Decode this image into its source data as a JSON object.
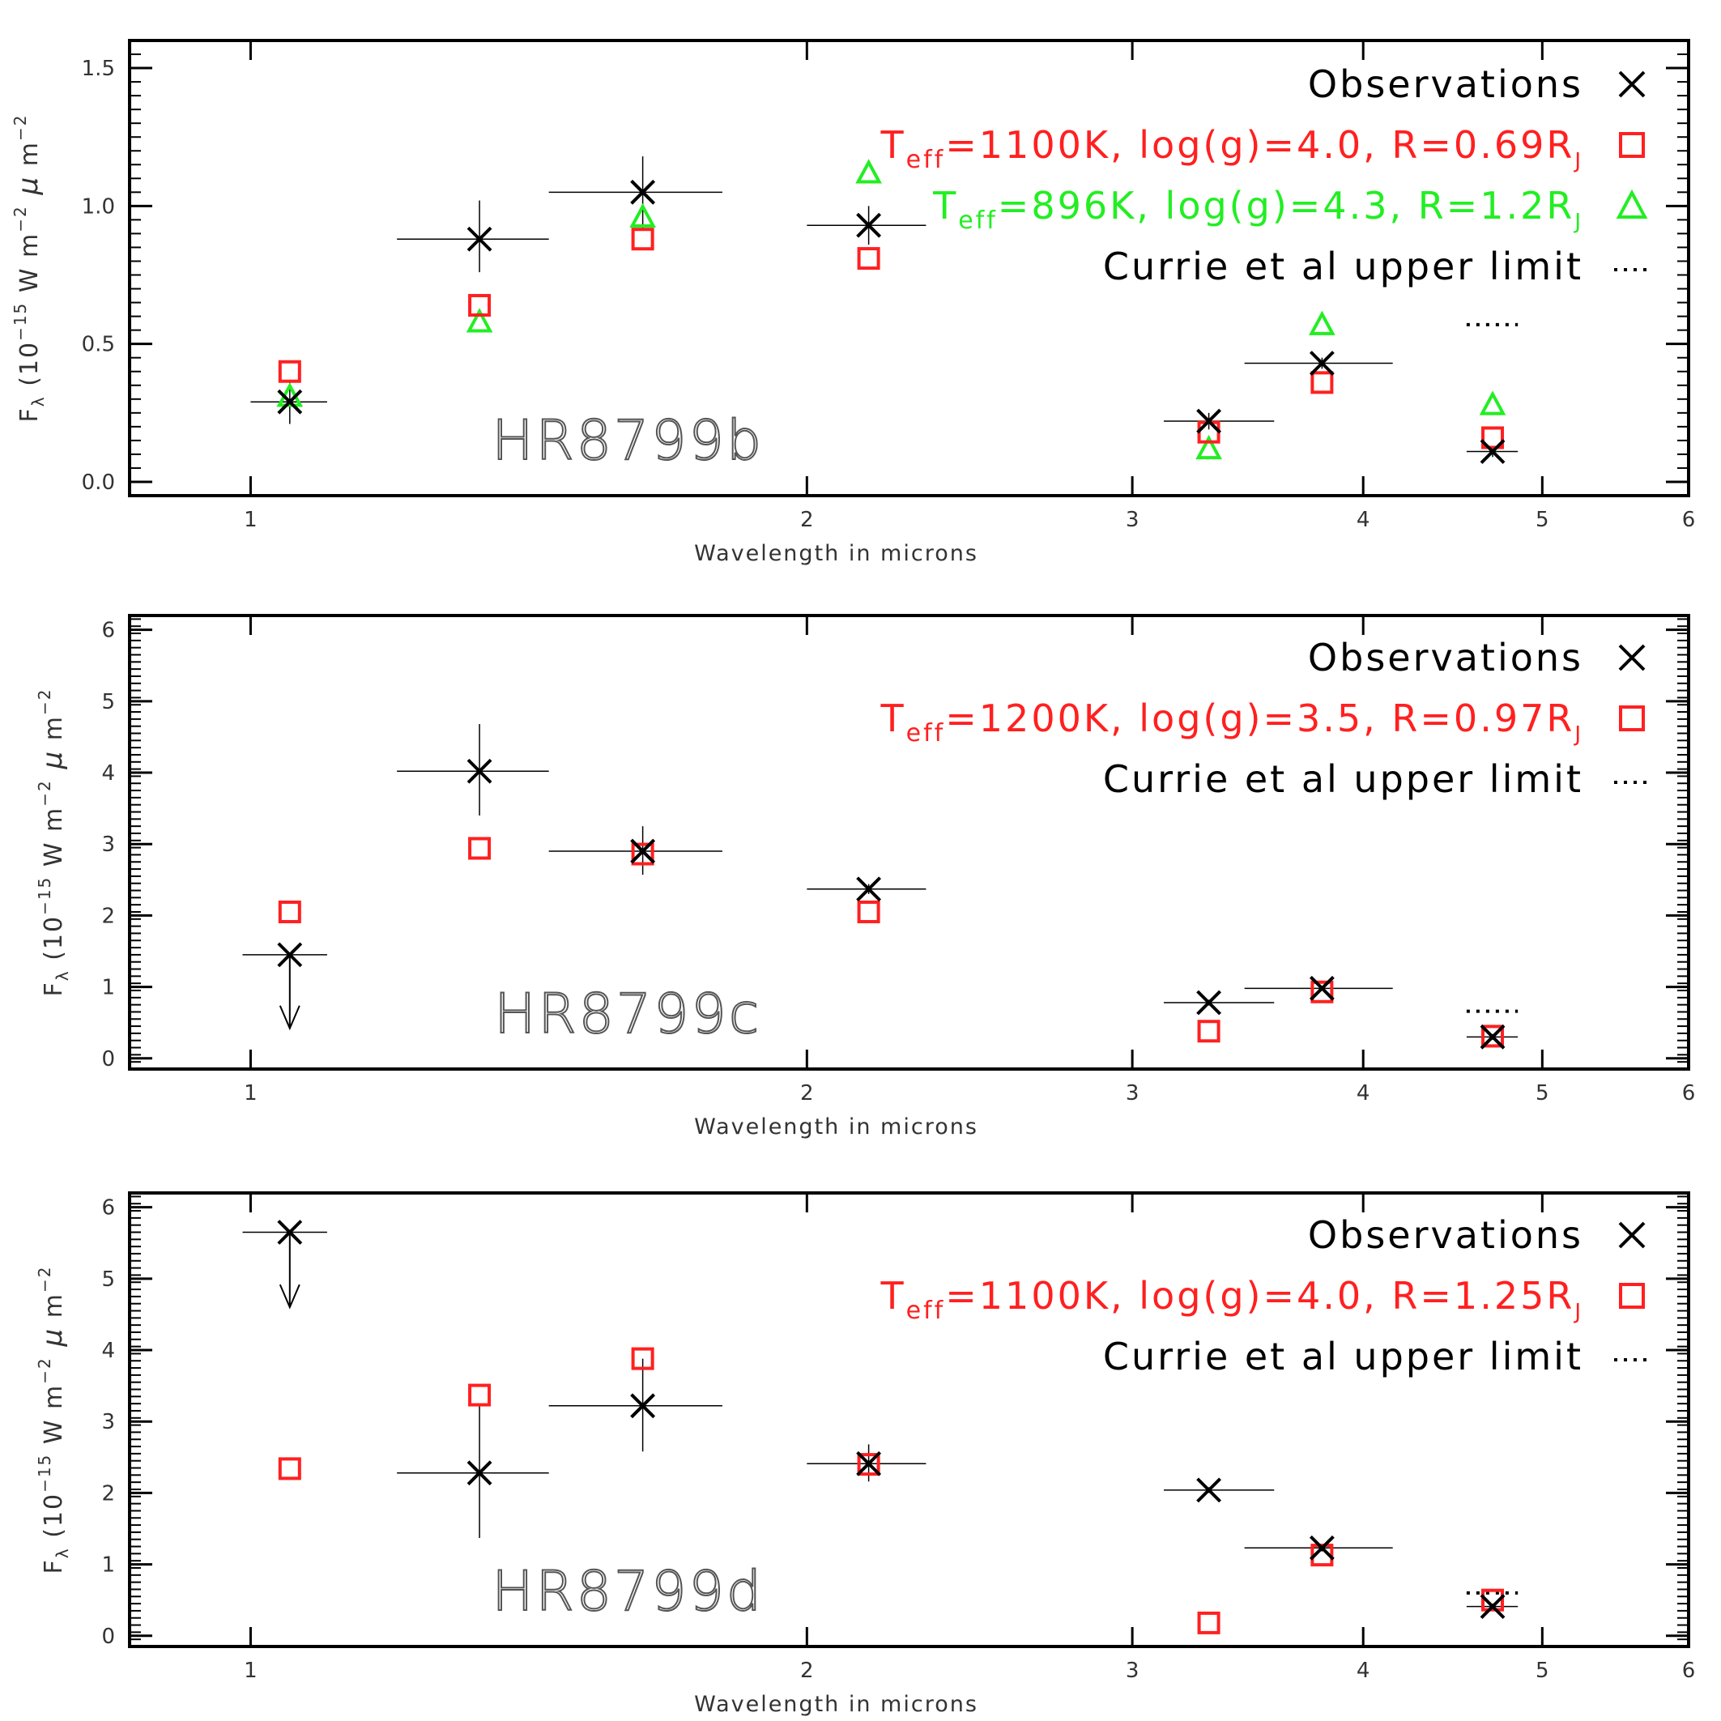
{
  "chart_data": [
    {
      "type": "scatter",
      "title": "HR8799b",
      "xlabel": "Wavelength in microns",
      "ylabel": "F_λ (10^-15 W m^-2 μ m^-2)",
      "ylabel_parts": {
        "prefix": "F",
        "sub": "λ",
        "main": "(10",
        "exp1": "−15",
        "w": "W m",
        "exp2": "−2",
        "mu": "μ",
        "m": "m",
        "exp3": "−2"
      },
      "xscale": "log",
      "xlim": [
        0.86,
        6.0
      ],
      "ylim": [
        -0.05,
        1.6
      ],
      "xticks": [
        1,
        2,
        3,
        4,
        5,
        6
      ],
      "yticks": [
        0.0,
        0.5,
        1.0,
        1.5
      ],
      "ytick_labels": [
        "0.0",
        "0.5",
        "1.0",
        "1.5"
      ],
      "legend": [
        {
          "type": "obs",
          "text": "Observations",
          "color": "#000000"
        },
        {
          "type": "model",
          "parts": [
            "T",
            "eff",
            "=1100K, log(g)=4.0, R=0.69R",
            "J"
          ],
          "color": "#ff2020"
        },
        {
          "type": "model2",
          "parts": [
            "T",
            "eff",
            "=896K, log(g)=4.3, R=1.2R",
            "J"
          ],
          "color": "#22ee22"
        },
        {
          "type": "limit",
          "text": "Currie et al upper limit",
          "color": "#000000"
        }
      ],
      "observations": [
        {
          "x": 1.05,
          "y": 0.29,
          "xerr": [
            1.0,
            1.1
          ],
          "yerr": [
            0.21,
            0.36
          ],
          "upper": false
        },
        {
          "x": 1.33,
          "y": 0.88,
          "xerr": [
            1.2,
            1.45
          ],
          "yerr": [
            0.76,
            1.02
          ],
          "upper": false
        },
        {
          "x": 1.63,
          "y": 1.05,
          "xerr": [
            1.45,
            1.8
          ],
          "yerr": [
            0.92,
            1.18
          ],
          "upper": false
        },
        {
          "x": 2.16,
          "y": 0.93,
          "xerr": [
            2.0,
            2.32
          ],
          "yerr": [
            0.86,
            1.0
          ],
          "upper": false
        },
        {
          "x": 3.3,
          "y": 0.22,
          "xerr": [
            3.12,
            3.58
          ],
          "yerr": [
            0.19,
            0.25
          ],
          "upper": false
        },
        {
          "x": 3.8,
          "y": 0.43,
          "xerr": [
            3.45,
            4.15
          ],
          "yerr": [
            0.41,
            0.45
          ],
          "upper": false
        },
        {
          "x": 4.7,
          "y": 0.11,
          "xerr": [
            4.55,
            4.85
          ],
          "yerr": [
            0.09,
            0.13
          ],
          "upper": false
        }
      ],
      "model": [
        {
          "x": 1.05,
          "y": 0.4
        },
        {
          "x": 1.33,
          "y": 0.64
        },
        {
          "x": 1.63,
          "y": 0.88
        },
        {
          "x": 2.16,
          "y": 0.81
        },
        {
          "x": 3.3,
          "y": 0.18
        },
        {
          "x": 3.8,
          "y": 0.36
        },
        {
          "x": 4.7,
          "y": 0.16
        }
      ],
      "model2": [
        {
          "x": 1.05,
          "y": 0.31
        },
        {
          "x": 1.33,
          "y": 0.58
        },
        {
          "x": 1.63,
          "y": 0.96
        },
        {
          "x": 2.16,
          "y": 1.12
        },
        {
          "x": 3.3,
          "y": 0.12
        },
        {
          "x": 3.8,
          "y": 0.57
        },
        {
          "x": 4.7,
          "y": 0.28
        }
      ],
      "upper_limit": {
        "x": [
          4.55,
          4.85
        ],
        "y": 0.57
      }
    },
    {
      "type": "scatter",
      "title": "HR8799c",
      "xlabel": "Wavelength in microns",
      "ylabel": "F_λ (10^-15 W m^-2 μ m^-2)",
      "ylabel_parts": {
        "prefix": "F",
        "sub": "λ",
        "main": "(10",
        "exp1": "−15",
        "w": "W m",
        "exp2": "−2",
        "mu": "μ",
        "m": "m",
        "exp3": "−2"
      },
      "xscale": "log",
      "xlim": [
        0.86,
        6.0
      ],
      "ylim": [
        -0.15,
        6.2
      ],
      "xticks": [
        1,
        2,
        3,
        4,
        5,
        6
      ],
      "yticks": [
        0,
        1,
        2,
        3,
        4,
        5,
        6
      ],
      "ytick_labels": [
        "0",
        "1",
        "2",
        "3",
        "4",
        "5",
        "6"
      ],
      "legend": [
        {
          "type": "obs",
          "text": "Observations",
          "color": "#000000"
        },
        {
          "type": "model",
          "parts": [
            "T",
            "eff",
            "=1200K, log(g)=3.5, R=0.97R",
            "J"
          ],
          "color": "#ff2020"
        },
        {
          "type": "limit",
          "text": "Currie et al upper limit",
          "color": "#000000"
        }
      ],
      "observations": [
        {
          "x": 1.05,
          "y": 1.45,
          "xerr": [
            0.99,
            1.1
          ],
          "yerr": null,
          "upper": true,
          "arrow_to": 0.42
        },
        {
          "x": 1.33,
          "y": 4.02,
          "xerr": [
            1.2,
            1.45
          ],
          "yerr": [
            3.4,
            4.68
          ],
          "upper": false
        },
        {
          "x": 1.63,
          "y": 2.9,
          "xerr": [
            1.45,
            1.8
          ],
          "yerr": [
            2.57,
            3.25
          ],
          "upper": false
        },
        {
          "x": 2.16,
          "y": 2.37,
          "xerr": [
            2.0,
            2.32
          ],
          "yerr": [
            2.3,
            2.44
          ],
          "upper": false
        },
        {
          "x": 3.3,
          "y": 0.78,
          "xerr": [
            3.12,
            3.58
          ],
          "yerr": [
            0.74,
            0.82
          ],
          "upper": false
        },
        {
          "x": 3.8,
          "y": 0.98,
          "xerr": [
            3.45,
            4.15
          ],
          "yerr": [
            0.95,
            1.01
          ],
          "upper": false
        },
        {
          "x": 4.7,
          "y": 0.3,
          "xerr": [
            4.55,
            4.85
          ],
          "yerr": [
            0.26,
            0.34
          ],
          "upper": false
        }
      ],
      "model": [
        {
          "x": 1.05,
          "y": 2.05
        },
        {
          "x": 1.33,
          "y": 2.94
        },
        {
          "x": 1.63,
          "y": 2.86
        },
        {
          "x": 2.16,
          "y": 2.05
        },
        {
          "x": 3.3,
          "y": 0.38
        },
        {
          "x": 3.8,
          "y": 0.93
        },
        {
          "x": 4.7,
          "y": 0.31
        }
      ],
      "model2": [],
      "upper_limit": {
        "x": [
          4.55,
          4.85
        ],
        "y": 0.66
      }
    },
    {
      "type": "scatter",
      "title": "HR8799d",
      "xlabel": "Wavelength in microns",
      "ylabel": "F_λ (10^-15 W m^-2 μ m^-2)",
      "ylabel_parts": {
        "prefix": "F",
        "sub": "λ",
        "main": "(10",
        "exp1": "−15",
        "w": "W m",
        "exp2": "−2",
        "mu": "μ",
        "m": "m",
        "exp3": "−2"
      },
      "xscale": "log",
      "xlim": [
        0.86,
        6.0
      ],
      "ylim": [
        -0.15,
        6.2
      ],
      "xticks": [
        1,
        2,
        3,
        4,
        5,
        6
      ],
      "yticks": [
        0,
        1,
        2,
        3,
        4,
        5,
        6
      ],
      "ytick_labels": [
        "0",
        "1",
        "2",
        "3",
        "4",
        "5",
        "6"
      ],
      "legend": [
        {
          "type": "obs",
          "text": "Observations",
          "color": "#000000"
        },
        {
          "type": "model",
          "parts": [
            "T",
            "eff",
            "=1100K, log(g)=4.0, R=1.25R",
            "J"
          ],
          "color": "#ff2020"
        },
        {
          "type": "limit",
          "text": "Currie et al upper limit",
          "color": "#000000"
        }
      ],
      "observations": [
        {
          "x": 1.05,
          "y": 5.65,
          "xerr": [
            0.99,
            1.1
          ],
          "yerr": null,
          "upper": true,
          "arrow_to": 4.6
        },
        {
          "x": 1.33,
          "y": 2.28,
          "xerr": [
            1.2,
            1.45
          ],
          "yerr": [
            1.37,
            3.22
          ],
          "upper": false
        },
        {
          "x": 1.63,
          "y": 3.22,
          "xerr": [
            1.45,
            1.8
          ],
          "yerr": [
            2.58,
            3.88
          ],
          "upper": false
        },
        {
          "x": 2.16,
          "y": 2.41,
          "xerr": [
            2.0,
            2.32
          ],
          "yerr": [
            2.16,
            2.68
          ],
          "upper": false
        },
        {
          "x": 3.3,
          "y": 2.04,
          "xerr": [
            3.12,
            3.58
          ],
          "yerr": [
            2.0,
            2.08
          ],
          "upper": false
        },
        {
          "x": 3.8,
          "y": 1.23,
          "xerr": [
            3.45,
            4.15
          ],
          "yerr": [
            1.18,
            1.28
          ],
          "upper": false
        },
        {
          "x": 4.7,
          "y": 0.41,
          "xerr": [
            4.55,
            4.85
          ],
          "yerr": [
            0.37,
            0.45
          ],
          "upper": false
        }
      ],
      "model": [
        {
          "x": 1.05,
          "y": 2.34
        },
        {
          "x": 1.33,
          "y": 3.37
        },
        {
          "x": 1.63,
          "y": 3.88
        },
        {
          "x": 2.16,
          "y": 2.4
        },
        {
          "x": 3.3,
          "y": 0.18
        },
        {
          "x": 3.8,
          "y": 1.13
        },
        {
          "x": 4.7,
          "y": 0.5
        }
      ],
      "model2": [],
      "upper_limit": {
        "x": [
          4.55,
          4.85
        ],
        "y": 0.6
      }
    }
  ]
}
